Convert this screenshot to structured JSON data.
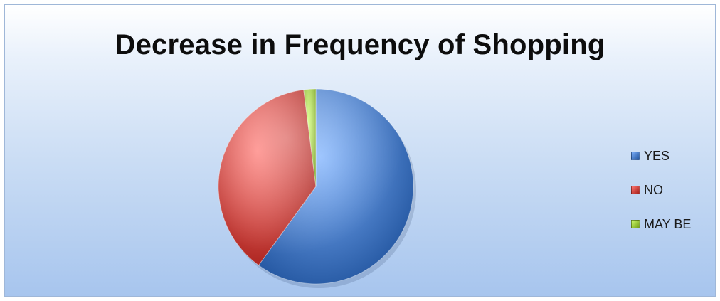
{
  "chart_data": {
    "type": "pie",
    "title": "Decrease in Frequency of Shopping",
    "categories": [
      "YES",
      "NO",
      "MAY BE"
    ],
    "values": [
      60,
      38,
      2
    ],
    "colors": [
      "#4a7dc7",
      "#cd4641",
      "#9ac83c"
    ],
    "legend_position": "right",
    "start_angle_deg": 0,
    "direction": "clockwise"
  }
}
